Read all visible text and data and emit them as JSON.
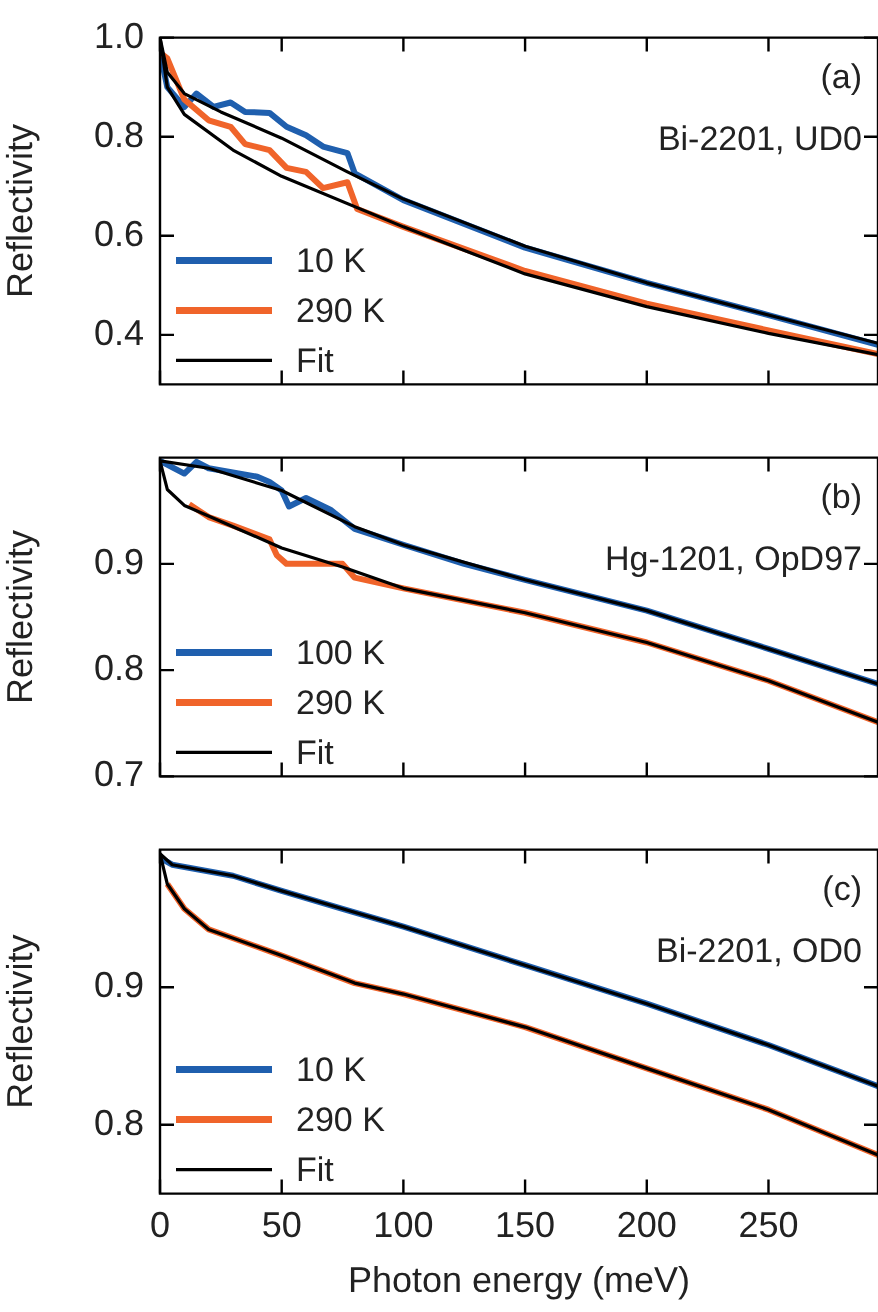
{
  "chart_data": [
    {
      "type": "line",
      "ylabel": "Reflectivity",
      "xlim": [
        0,
        295
      ],
      "ylim": [
        0.3,
        1.0
      ],
      "xticks": [
        0,
        50,
        100,
        150,
        200,
        250
      ],
      "yticks": [
        0.4,
        0.6,
        0.8,
        {
          "value": 1,
          "label": "1.0"
        }
      ],
      "tick_labels": "y",
      "legend": "bottom left",
      "annotations": [
        "(a)",
        "Bi-2201, UD0"
      ],
      "series": [
        {
          "name": "10 K",
          "color": "#1f5fae",
          "x": [
            0,
            3,
            10,
            15,
            22,
            29,
            35,
            45,
            52,
            60,
            67,
            77,
            80,
            100,
            150,
            200,
            250,
            295
          ],
          "values": [
            0.97,
            0.9,
            0.86,
            0.887,
            0.86,
            0.869,
            0.85,
            0.848,
            0.82,
            0.803,
            0.78,
            0.767,
            0.726,
            0.672,
            0.576,
            0.505,
            0.44,
            0.38
          ]
        },
        {
          "name": "290 K",
          "color": "#f0642a",
          "x": [
            0,
            3,
            10,
            20,
            29,
            35,
            45,
            52,
            60,
            67,
            77,
            81,
            100,
            150,
            200,
            250,
            295
          ],
          "values": [
            0.97,
            0.958,
            0.875,
            0.833,
            0.82,
            0.785,
            0.773,
            0.737,
            0.729,
            0.696,
            0.708,
            0.654,
            0.618,
            0.529,
            0.463,
            0.409,
            0.361
          ]
        },
        {
          "name": "Fit",
          "color": "#000000",
          "x": [
            0,
            3,
            10,
            25,
            50,
            77,
            100,
            150,
            200,
            250,
            295
          ],
          "values": [
            1.0,
            0.93,
            0.887,
            0.85,
            0.797,
            0.729,
            0.674,
            0.579,
            0.505,
            0.44,
            0.383
          ]
        },
        {
          "color": "#000000",
          "x": [
            0,
            3,
            10,
            30,
            50,
            100,
            150,
            200,
            250,
            295
          ],
          "values": [
            1.0,
            0.9,
            0.845,
            0.773,
            0.72,
            0.618,
            0.523,
            0.457,
            0.403,
            0.36
          ]
        }
      ]
    },
    {
      "type": "line",
      "ylabel": "Reflectivity",
      "xlim": [
        0,
        295
      ],
      "ylim": [
        0.7,
        1.0
      ],
      "xticks": [
        0,
        50,
        100,
        150,
        200,
        250
      ],
      "yticks": [
        0.7,
        0.8,
        0.9
      ],
      "tick_labels": "y",
      "legend": "bottom left",
      "annotations": [
        "(b)",
        "Hg-1201, OpD97"
      ],
      "series": [
        {
          "name": "100 K",
          "color": "#1f5fae",
          "x": [
            0,
            10,
            15,
            20,
            40,
            45,
            50,
            53,
            60,
            70,
            80,
            100,
            125,
            150,
            200,
            250,
            295
          ],
          "values": [
            0.997,
            0.985,
            0.996,
            0.99,
            0.982,
            0.977,
            0.969,
            0.954,
            0.962,
            0.951,
            0.933,
            0.918,
            0.9,
            0.885,
            0.856,
            0.82,
            0.787
          ]
        },
        {
          "name": "290 K",
          "color": "#f0642a",
          "x": [
            12,
            20,
            30,
            45,
            48,
            52,
            60,
            75,
            80,
            100,
            150,
            200,
            250,
            295
          ],
          "values": [
            0.956,
            0.944,
            0.936,
            0.923,
            0.908,
            0.9,
            0.9,
            0.9,
            0.887,
            0.877,
            0.854,
            0.826,
            0.79,
            0.751
          ]
        },
        {
          "name": "Fit",
          "color": "#000000",
          "x": [
            0,
            20,
            50,
            80,
            100,
            150,
            200,
            250,
            295
          ],
          "values": [
            0.997,
            0.99,
            0.969,
            0.935,
            0.918,
            0.885,
            0.856,
            0.82,
            0.787
          ]
        },
        {
          "color": "#000000",
          "x": [
            0,
            3,
            10,
            30,
            50,
            75,
            100,
            150,
            200,
            250,
            295
          ],
          "values": [
            0.997,
            0.97,
            0.955,
            0.935,
            0.915,
            0.897,
            0.877,
            0.854,
            0.826,
            0.79,
            0.751
          ]
        }
      ]
    },
    {
      "type": "line",
      "xlabel": "Photon energy (meV)",
      "ylabel": "Reflectivity",
      "xlim": [
        0,
        295
      ],
      "ylim": [
        0.75,
        1.0
      ],
      "xticks": [
        0,
        50,
        100,
        150,
        200,
        250
      ],
      "yticks": [
        0.8,
        0.9
      ],
      "legend": "bottom left",
      "annotations": [
        "(c)",
        "Bi-2201, OD0"
      ],
      "series": [
        {
          "name": "10 K",
          "color": "#1f5fae",
          "x": [
            0,
            5,
            30,
            50,
            75,
            100,
            150,
            200,
            250,
            295
          ],
          "values": [
            0.994,
            0.989,
            0.981,
            0.97,
            0.957,
            0.944,
            0.916,
            0.888,
            0.858,
            0.828
          ]
        },
        {
          "name": "290 K",
          "color": "#f0642a",
          "x": [
            3,
            10,
            20,
            50,
            80,
            100,
            150,
            200,
            250,
            295
          ],
          "values": [
            0.975,
            0.957,
            0.942,
            0.923,
            0.903,
            0.895,
            0.871,
            0.841,
            0.811,
            0.778
          ]
        },
        {
          "name": "Fit",
          "color": "#000000",
          "x": [
            0,
            5,
            30,
            50,
            75,
            100,
            150,
            200,
            250,
            295
          ],
          "values": [
            0.997,
            0.989,
            0.981,
            0.97,
            0.957,
            0.944,
            0.916,
            0.888,
            0.858,
            0.828
          ]
        },
        {
          "color": "#000000",
          "x": [
            0,
            3,
            10,
            20,
            50,
            80,
            100,
            150,
            200,
            250,
            295
          ],
          "values": [
            0.997,
            0.975,
            0.957,
            0.942,
            0.923,
            0.903,
            0.895,
            0.871,
            0.841,
            0.811,
            0.778
          ]
        }
      ]
    }
  ]
}
